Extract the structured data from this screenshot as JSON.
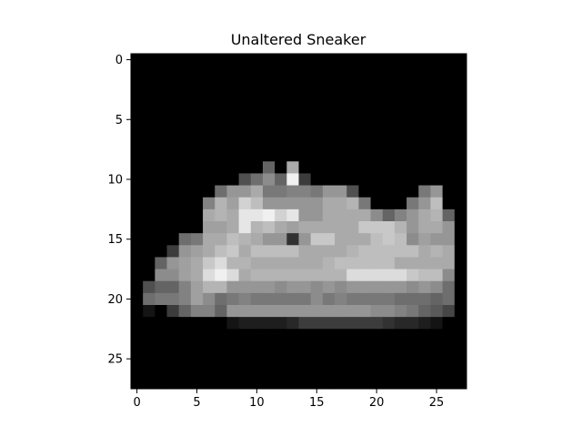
{
  "chart_data": {
    "type": "heatmap",
    "title": "Unaltered Sneaker",
    "colormap": "gray",
    "value_range": [
      0,
      255
    ],
    "grid": false,
    "x_ticks": [
      "0",
      "5",
      "10",
      "15",
      "20",
      "25"
    ],
    "y_ticks": [
      "0",
      "5",
      "10",
      "15",
      "20",
      "25"
    ],
    "rows": 28,
    "cols": 28,
    "pixels": [
      [
        0,
        0,
        0,
        0,
        0,
        0,
        0,
        0,
        0,
        0,
        0,
        0,
        0,
        0,
        0,
        0,
        0,
        0,
        0,
        0,
        0,
        0,
        0,
        0,
        0,
        0,
        0,
        0
      ],
      [
        0,
        0,
        0,
        0,
        0,
        0,
        0,
        0,
        0,
        0,
        0,
        0,
        0,
        0,
        0,
        0,
        0,
        0,
        0,
        0,
        0,
        0,
        0,
        0,
        0,
        0,
        0,
        0
      ],
      [
        0,
        0,
        0,
        0,
        0,
        0,
        0,
        0,
        0,
        0,
        0,
        0,
        0,
        0,
        0,
        0,
        0,
        0,
        0,
        0,
        0,
        0,
        0,
        0,
        0,
        0,
        0,
        0
      ],
      [
        0,
        0,
        0,
        0,
        0,
        0,
        0,
        0,
        0,
        0,
        0,
        0,
        0,
        0,
        0,
        0,
        0,
        0,
        0,
        0,
        0,
        0,
        0,
        0,
        0,
        0,
        0,
        0
      ],
      [
        0,
        0,
        0,
        0,
        0,
        0,
        0,
        0,
        0,
        0,
        0,
        0,
        0,
        0,
        0,
        0,
        0,
        0,
        0,
        0,
        0,
        0,
        0,
        0,
        0,
        0,
        0,
        0
      ],
      [
        0,
        0,
        0,
        0,
        0,
        0,
        0,
        0,
        0,
        0,
        0,
        0,
        0,
        0,
        0,
        0,
        0,
        0,
        0,
        0,
        0,
        0,
        0,
        0,
        0,
        0,
        0,
        0
      ],
      [
        0,
        0,
        0,
        0,
        0,
        0,
        0,
        0,
        0,
        0,
        0,
        0,
        0,
        0,
        0,
        0,
        0,
        0,
        0,
        0,
        0,
        0,
        0,
        0,
        0,
        0,
        0,
        0
      ],
      [
        0,
        0,
        0,
        0,
        0,
        0,
        0,
        0,
        0,
        0,
        0,
        0,
        0,
        0,
        0,
        0,
        0,
        0,
        0,
        0,
        0,
        0,
        0,
        0,
        0,
        0,
        0,
        0
      ],
      [
        0,
        0,
        0,
        0,
        0,
        0,
        0,
        0,
        0,
        0,
        0,
        0,
        0,
        0,
        0,
        0,
        0,
        0,
        0,
        0,
        0,
        0,
        0,
        0,
        0,
        0,
        0,
        0
      ],
      [
        0,
        0,
        0,
        0,
        0,
        0,
        0,
        0,
        0,
        0,
        0,
        100,
        0,
        170,
        0,
        0,
        0,
        0,
        0,
        0,
        0,
        0,
        0,
        0,
        0,
        0,
        0,
        0
      ],
      [
        0,
        0,
        0,
        0,
        0,
        0,
        0,
        0,
        0,
        80,
        110,
        140,
        100,
        240,
        60,
        0,
        0,
        0,
        0,
        0,
        0,
        0,
        0,
        0,
        0,
        0,
        0,
        0
      ],
      [
        0,
        0,
        0,
        0,
        0,
        0,
        0,
        110,
        150,
        150,
        170,
        120,
        120,
        130,
        130,
        120,
        150,
        150,
        80,
        0,
        0,
        0,
        0,
        0,
        120,
        150,
        0,
        0
      ],
      [
        0,
        0,
        0,
        0,
        0,
        0,
        130,
        180,
        160,
        210,
        190,
        150,
        150,
        150,
        150,
        150,
        170,
        170,
        180,
        120,
        0,
        0,
        0,
        120,
        150,
        190,
        0,
        0
      ],
      [
        0,
        0,
        0,
        0,
        0,
        0,
        170,
        180,
        170,
        230,
        230,
        240,
        210,
        230,
        150,
        150,
        170,
        170,
        170,
        170,
        140,
        100,
        130,
        150,
        170,
        180,
        100,
        0
      ],
      [
        0,
        0,
        0,
        0,
        0,
        0,
        160,
        160,
        170,
        230,
        180,
        190,
        170,
        160,
        170,
        170,
        170,
        170,
        170,
        200,
        200,
        200,
        180,
        150,
        170,
        170,
        150,
        0
      ],
      [
        0,
        0,
        0,
        0,
        110,
        120,
        170,
        170,
        190,
        180,
        170,
        150,
        150,
        50,
        150,
        200,
        200,
        170,
        170,
        170,
        190,
        200,
        190,
        140,
        160,
        150,
        150,
        0
      ],
      [
        0,
        0,
        0,
        60,
        150,
        160,
        170,
        190,
        200,
        170,
        190,
        190,
        190,
        190,
        170,
        170,
        170,
        170,
        180,
        190,
        190,
        190,
        190,
        190,
        170,
        180,
        170,
        0
      ],
      [
        0,
        0,
        100,
        150,
        160,
        170,
        200,
        220,
        180,
        180,
        170,
        170,
        170,
        170,
        170,
        170,
        180,
        190,
        190,
        190,
        190,
        190,
        170,
        170,
        170,
        170,
        170,
        0
      ],
      [
        0,
        0,
        140,
        140,
        160,
        170,
        220,
        240,
        220,
        170,
        180,
        180,
        180,
        180,
        180,
        180,
        180,
        180,
        220,
        220,
        220,
        220,
        220,
        200,
        190,
        190,
        140,
        0
      ],
      [
        0,
        80,
        100,
        100,
        130,
        160,
        180,
        180,
        150,
        150,
        150,
        150,
        140,
        150,
        150,
        140,
        150,
        140,
        150,
        150,
        150,
        150,
        150,
        140,
        150,
        140,
        110,
        0
      ],
      [
        0,
        110,
        120,
        120,
        130,
        160,
        140,
        110,
        120,
        130,
        120,
        120,
        120,
        120,
        120,
        140,
        120,
        130,
        120,
        120,
        120,
        120,
        110,
        110,
        110,
        100,
        110,
        0
      ],
      [
        0,
        20,
        0,
        60,
        100,
        130,
        130,
        100,
        150,
        150,
        150,
        150,
        150,
        150,
        150,
        150,
        150,
        150,
        150,
        150,
        140,
        140,
        130,
        120,
        100,
        90,
        70,
        0
      ],
      [
        0,
        0,
        0,
        0,
        0,
        0,
        0,
        0,
        20,
        30,
        30,
        30,
        30,
        40,
        60,
        60,
        60,
        60,
        60,
        60,
        60,
        50,
        40,
        40,
        30,
        20,
        0,
        0
      ],
      [
        0,
        0,
        0,
        0,
        0,
        0,
        0,
        0,
        0,
        0,
        0,
        0,
        0,
        0,
        0,
        0,
        0,
        0,
        0,
        0,
        0,
        0,
        0,
        0,
        0,
        0,
        0,
        0
      ],
      [
        0,
        0,
        0,
        0,
        0,
        0,
        0,
        0,
        0,
        0,
        0,
        0,
        0,
        0,
        0,
        0,
        0,
        0,
        0,
        0,
        0,
        0,
        0,
        0,
        0,
        0,
        0,
        0
      ],
      [
        0,
        0,
        0,
        0,
        0,
        0,
        0,
        0,
        0,
        0,
        0,
        0,
        0,
        0,
        0,
        0,
        0,
        0,
        0,
        0,
        0,
        0,
        0,
        0,
        0,
        0,
        0,
        0
      ],
      [
        0,
        0,
        0,
        0,
        0,
        0,
        0,
        0,
        0,
        0,
        0,
        0,
        0,
        0,
        0,
        0,
        0,
        0,
        0,
        0,
        0,
        0,
        0,
        0,
        0,
        0,
        0,
        0
      ],
      [
        0,
        0,
        0,
        0,
        0,
        0,
        0,
        0,
        0,
        0,
        0,
        0,
        0,
        0,
        0,
        0,
        0,
        0,
        0,
        0,
        0,
        0,
        0,
        0,
        0,
        0,
        0,
        0
      ]
    ]
  }
}
